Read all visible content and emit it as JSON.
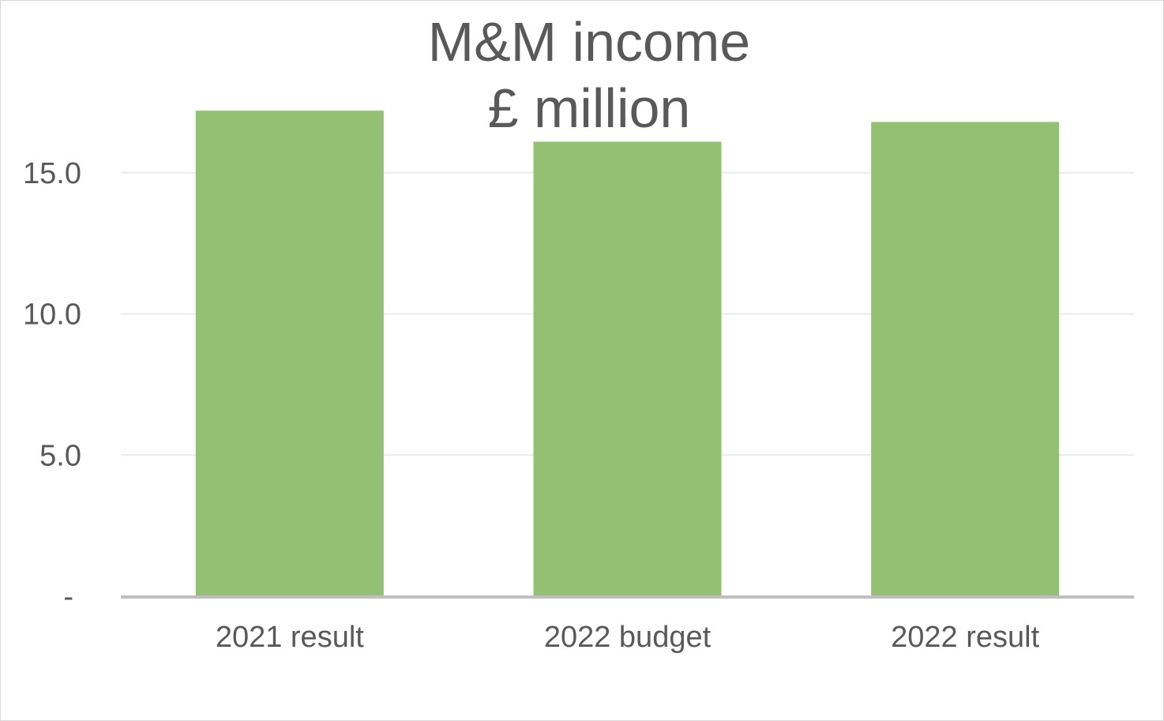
{
  "chart_data": {
    "type": "bar",
    "title_lines": [
      "M&M income",
      "£ million"
    ],
    "categories": [
      "2021 result",
      "2022 budget",
      "2022 result"
    ],
    "values": [
      17.2,
      16.1,
      16.8
    ],
    "ylim": [
      0,
      17.5
    ],
    "yticks": [
      0,
      5,
      10,
      15
    ],
    "ytick_labels": [
      "-",
      "5.0",
      "10.0",
      "15.0"
    ],
    "grid": true,
    "legend": "none",
    "bar_color": "#93c073",
    "grid_color": "#ececec",
    "axis_color": "#bfbfbf",
    "text_color": "#595959"
  }
}
